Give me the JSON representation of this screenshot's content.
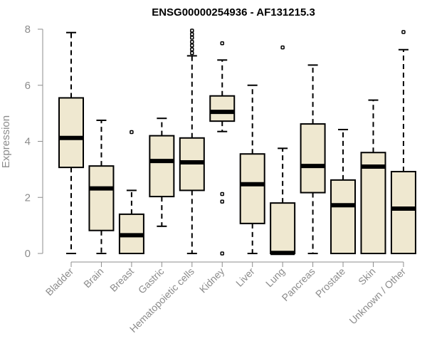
{
  "chart_data": {
    "type": "box",
    "title": "ENSG00000254936 - AF131215.3",
    "xlabel": "",
    "ylabel": "Expression",
    "ylim": [
      0,
      8
    ],
    "yticks": [
      0,
      2,
      4,
      6,
      8
    ],
    "grid": false,
    "box_fill": "#efe8d0",
    "box_stroke": "#000000",
    "axis_color": "#8c8c8c",
    "categories": [
      "Bladder",
      "Brain",
      "Breast",
      "Gastric",
      "Hematopoietic cells",
      "Kidney",
      "Liver",
      "Lung",
      "Pancreas",
      "Prostate",
      "Skin",
      "Unknown / Other"
    ],
    "boxes": [
      {
        "min": 0,
        "q1": 3.07,
        "median": 4.12,
        "q3": 5.55,
        "max": 7.88,
        "outliers": []
      },
      {
        "min": 0,
        "q1": 0.82,
        "median": 2.32,
        "q3": 3.12,
        "max": 4.75,
        "outliers": []
      },
      {
        "min": 0,
        "q1": 0,
        "median": 0.65,
        "q3": 1.4,
        "max": 2.25,
        "outliers": [
          4.33
        ]
      },
      {
        "min": 0.97,
        "q1": 2.03,
        "median": 3.3,
        "q3": 4.2,
        "max": 4.82,
        "outliers": []
      },
      {
        "min": 0,
        "q1": 2.25,
        "median": 3.25,
        "q3": 4.12,
        "max": 7.05,
        "outliers": [
          7.15,
          7.28,
          7.42,
          7.55,
          7.7,
          7.82,
          7.95
        ]
      },
      {
        "min": 4.35,
        "q1": 4.72,
        "median": 5.05,
        "q3": 5.62,
        "max": 6.9,
        "outliers": [
          0,
          1.85,
          2.12,
          7.5
        ]
      },
      {
        "min": 0,
        "q1": 1.07,
        "median": 2.47,
        "q3": 3.55,
        "max": 6.0,
        "outliers": []
      },
      {
        "min": 0,
        "q1": 0,
        "median": 0.02,
        "q3": 1.8,
        "max": 3.75,
        "outliers": [
          7.35
        ]
      },
      {
        "min": 0,
        "q1": 2.17,
        "median": 3.12,
        "q3": 4.62,
        "max": 6.72,
        "outliers": []
      },
      {
        "min": 0,
        "q1": 0,
        "median": 1.72,
        "q3": 2.62,
        "max": 4.42,
        "outliers": []
      },
      {
        "min": 0,
        "q1": 0,
        "median": 3.1,
        "q3": 3.6,
        "max": 5.47,
        "outliers": []
      },
      {
        "min": 0,
        "q1": 0,
        "median": 1.6,
        "q3": 2.92,
        "max": 7.27,
        "outliers": [
          7.9
        ]
      }
    ]
  }
}
